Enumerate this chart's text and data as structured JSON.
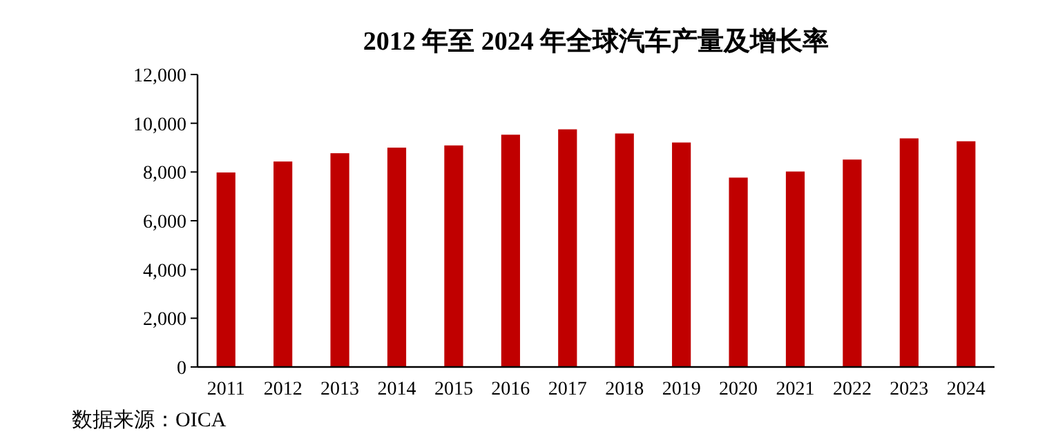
{
  "chart_data": {
    "type": "bar",
    "title": "2012 年至 2024 年全球汽车产量及增长率",
    "categories": [
      "2011",
      "2012",
      "2013",
      "2014",
      "2015",
      "2016",
      "2017",
      "2018",
      "2019",
      "2020",
      "2021",
      "2022",
      "2023",
      "2024"
    ],
    "values": [
      7980,
      8430,
      8770,
      9000,
      9090,
      9530,
      9750,
      9580,
      9210,
      7770,
      8020,
      8510,
      9380,
      9260
    ],
    "color": "#c00000",
    "ylim": [
      0,
      12000
    ],
    "yticks": [
      0,
      {
        "value": 2000,
        "label": "2,000"
      },
      {
        "value": 4000,
        "label": "4,000"
      },
      {
        "value": 6000,
        "label": "6,000"
      },
      {
        "value": 8000,
        "label": "8,000"
      },
      {
        "value": 10000,
        "label": "10,000"
      },
      {
        "value": 12000,
        "label": "12,000"
      }
    ],
    "annotations": [
      "数据来源：OICA"
    ]
  }
}
